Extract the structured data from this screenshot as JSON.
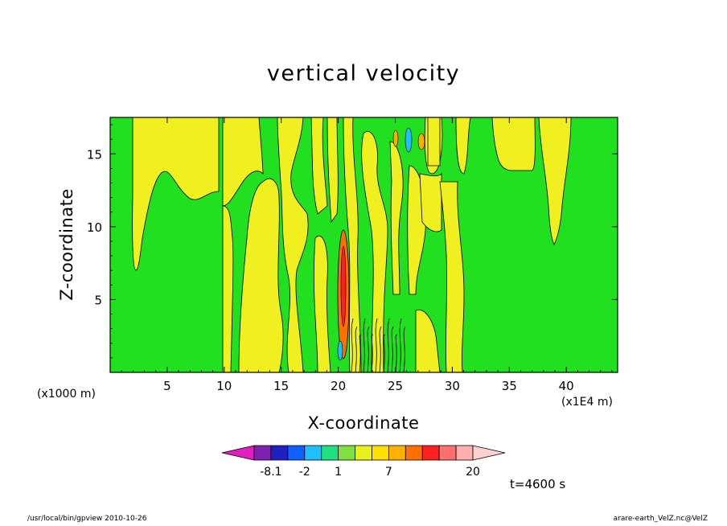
{
  "chart_data": {
    "type": "heatmap",
    "title": "vertical velocity",
    "xlabel": "X-coordinate",
    "ylabel": "Z-coordinate",
    "x_unit": "(x1E4 m)",
    "y_unit": "(x1000 m)",
    "xlim": [
      0,
      44.5
    ],
    "ylim": [
      0,
      17.5
    ],
    "x_ticks": [
      5,
      10,
      15,
      20,
      25,
      30,
      35,
      40
    ],
    "y_ticks": [
      5,
      10,
      15
    ],
    "time_label": "t=4600 s",
    "colorbar": {
      "colors": [
        "#e020c0",
        "#8020b0",
        "#2020c0",
        "#1060ff",
        "#20c0ff",
        "#20e080",
        "#80e040",
        "#e8f020",
        "#ffe000",
        "#ffb000",
        "#ff7000",
        "#ff2020",
        "#ff7070",
        "#ffb0b0",
        "#ffd0d0"
      ],
      "labels": [
        "-8.1",
        "-2",
        "1",
        "7",
        "20"
      ],
      "label_slots": [
        1,
        3,
        5,
        8,
        13
      ]
    },
    "field_colors": {
      "green": "#20e020",
      "yellow": "#f0f020",
      "orange": "#ff7000",
      "cyan": "#20c0ff"
    }
  },
  "footer": {
    "program": "/usr/local/bin/gpview   2010-10-26",
    "file": "arare-earth_VelZ.nc@VelZ"
  }
}
